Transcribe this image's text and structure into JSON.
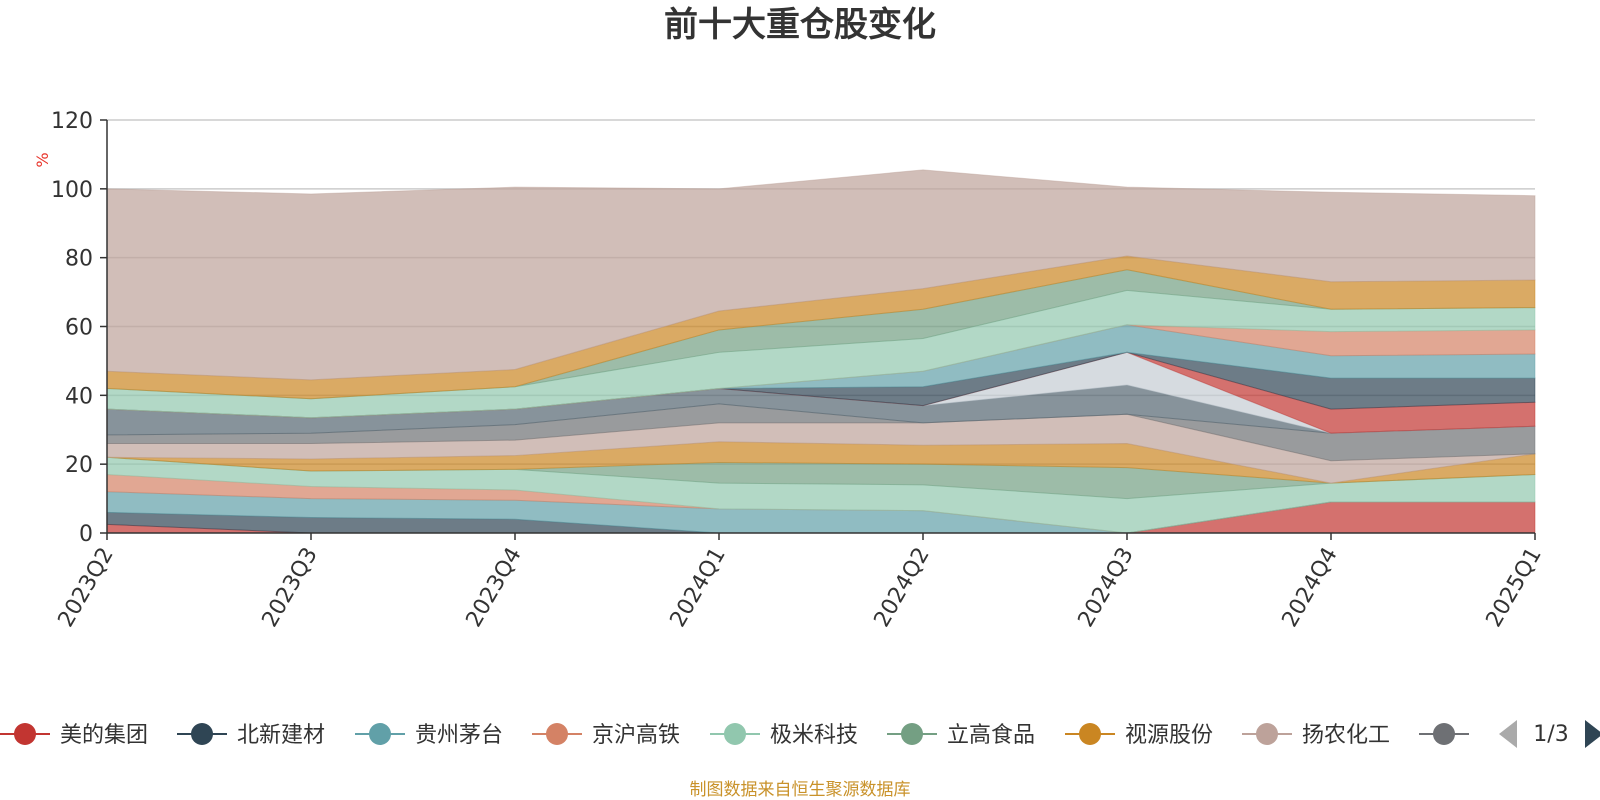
{
  "chart_data": {
    "type": "area",
    "title": "前十大重仓股变化",
    "ylabel": "%",
    "ylim": [
      0,
      120
    ],
    "yticks": [
      0,
      20,
      40,
      60,
      80,
      100,
      120
    ],
    "x": [
      "2023Q2",
      "2023Q3",
      "2023Q4",
      "2024Q1",
      "2024Q2",
      "2024Q3",
      "2024Q4",
      "2025Q1"
    ],
    "series": [
      {
        "name": "美的集团",
        "color": "#c23531",
        "values": [
          2.5,
          0,
          0,
          0,
          0,
          0,
          9,
          9
        ]
      },
      {
        "name": "北新建材",
        "color": "#2f4554",
        "values": [
          3.5,
          4.5,
          4,
          0,
          0,
          0,
          0,
          0
        ]
      },
      {
        "name": "贵州茅台",
        "color": "#61a0a8",
        "values": [
          6,
          5.5,
          5.5,
          7,
          6.5,
          0,
          0,
          0
        ]
      },
      {
        "name": "京沪高铁",
        "color": "#d48265",
        "values": [
          5,
          3.5,
          3,
          0,
          0,
          0,
          0,
          0
        ]
      },
      {
        "name": "极米科技",
        "color": "#91c7ae",
        "values": [
          5,
          4.5,
          6,
          7.5,
          7.5,
          10,
          5.5,
          8
        ]
      },
      {
        "name": "立高食品",
        "color": "#749f83",
        "values": [
          0,
          0,
          0,
          6,
          6,
          9,
          0,
          0
        ]
      },
      {
        "name": "视源股份",
        "color": "#ca8622",
        "values": [
          0,
          3.5,
          4,
          6,
          5.5,
          7,
          0,
          6
        ]
      },
      {
        "name": "扬农化工",
        "color": "#bda29a",
        "values": [
          4,
          4.5,
          4.5,
          5.5,
          6.5,
          8.5,
          6.5,
          0
        ]
      },
      {
        "name": "",
        "color": "#6e7074",
        "values": [
          2.5,
          3,
          4.5,
          5.5,
          0,
          0,
          8,
          8
        ]
      },
      {
        "name": "",
        "color": "#546570",
        "values": [
          7.5,
          4.5,
          4.5,
          4.5,
          5,
          8.5,
          0,
          0
        ]
      },
      {
        "name": "",
        "color": "#c4ccd3",
        "values": [
          0,
          0,
          0,
          0,
          0,
          9.5,
          0,
          0
        ]
      },
      {
        "name": "",
        "color": "#c23531",
        "values": [
          0,
          0,
          0,
          0,
          0,
          0,
          7,
          7
        ]
      },
      {
        "name": "",
        "color": "#2f4554",
        "values": [
          0,
          0,
          0,
          0,
          5.5,
          0,
          9,
          7
        ]
      },
      {
        "name": "",
        "color": "#61a0a8",
        "values": [
          0,
          0,
          0,
          0,
          4.5,
          8,
          6.5,
          7
        ]
      },
      {
        "name": "",
        "color": "#d48265",
        "values": [
          0,
          0,
          0,
          0,
          0,
          0,
          7,
          7
        ]
      },
      {
        "name": "",
        "color": "#91c7ae",
        "values": [
          6,
          5.5,
          6.5,
          10.5,
          9.5,
          10,
          6.5,
          6.5
        ]
      },
      {
        "name": "",
        "color": "#749f83",
        "values": [
          0,
          0,
          0,
          6.5,
          8.5,
          6,
          0,
          0
        ]
      },
      {
        "name": "",
        "color": "#ca8622",
        "values": [
          5,
          5.5,
          5,
          5.5,
          6,
          4,
          8,
          8
        ]
      },
      {
        "name": "",
        "color": "#bda29a",
        "values": [
          53,
          54,
          53,
          35.5,
          34.5,
          20,
          26,
          24.5
        ]
      }
    ],
    "legend": {
      "page": "1/3",
      "visible_items": [
        "美的集团",
        "北新建材",
        "贵州茅台",
        "京沪高铁",
        "极米科技",
        "立高食品",
        "视源股份",
        "扬农化工"
      ],
      "partial_item_color": "#6e7074"
    },
    "footer": "制图数据来自恒生聚源数据库"
  }
}
